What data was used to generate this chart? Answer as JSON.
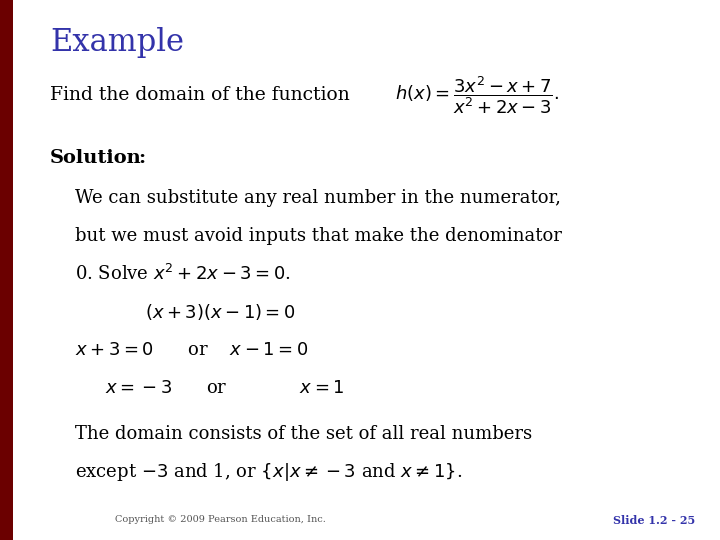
{
  "background_color": "#ffffff",
  "title": "Example",
  "title_color": "#3333aa",
  "title_fontsize": 22,
  "left_bar_color": "#6b0000",
  "copyright_text": "Copyright © 2009 Pearson Education, Inc.",
  "slide_number_text": "Slide 1.2 - 25",
  "slide_number_color": "#3333aa"
}
